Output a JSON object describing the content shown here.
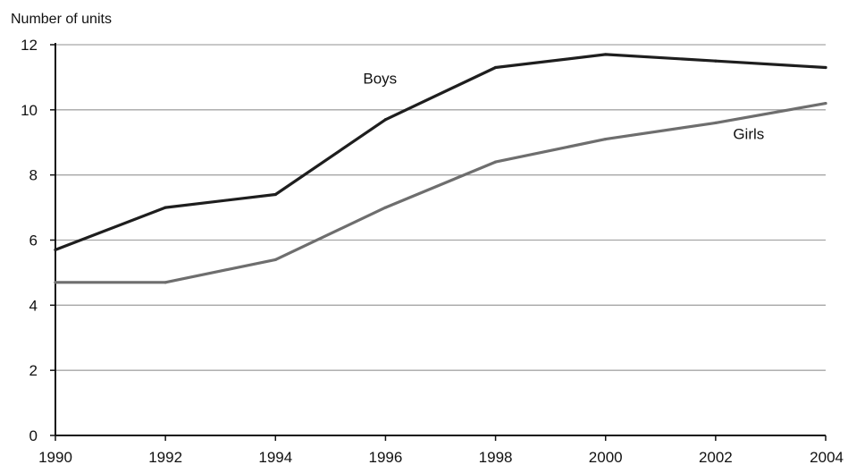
{
  "chart_data": {
    "type": "line",
    "title": "",
    "ylabel": "Number of units",
    "xlabel": "",
    "x": [
      1990,
      1992,
      1994,
      1996,
      1998,
      2000,
      2002,
      2004
    ],
    "xlim": [
      1990,
      2004
    ],
    "ylim": [
      0,
      12
    ],
    "yticks": [
      0,
      2,
      4,
      6,
      8,
      10,
      12
    ],
    "xticks": [
      1990,
      1992,
      1994,
      1996,
      1998,
      2000,
      2002,
      2004
    ],
    "grid": "horizontal",
    "legend": "inline labels",
    "series": [
      {
        "name": "Boys",
        "color": "#1e1e1e",
        "values": [
          5.7,
          7.0,
          7.4,
          9.7,
          11.3,
          11.7,
          11.5,
          11.3
        ]
      },
      {
        "name": "Girls",
        "color": "#6e6e6e",
        "values": [
          4.7,
          4.7,
          5.4,
          7.0,
          8.4,
          9.1,
          9.6,
          10.2
        ]
      }
    ]
  }
}
